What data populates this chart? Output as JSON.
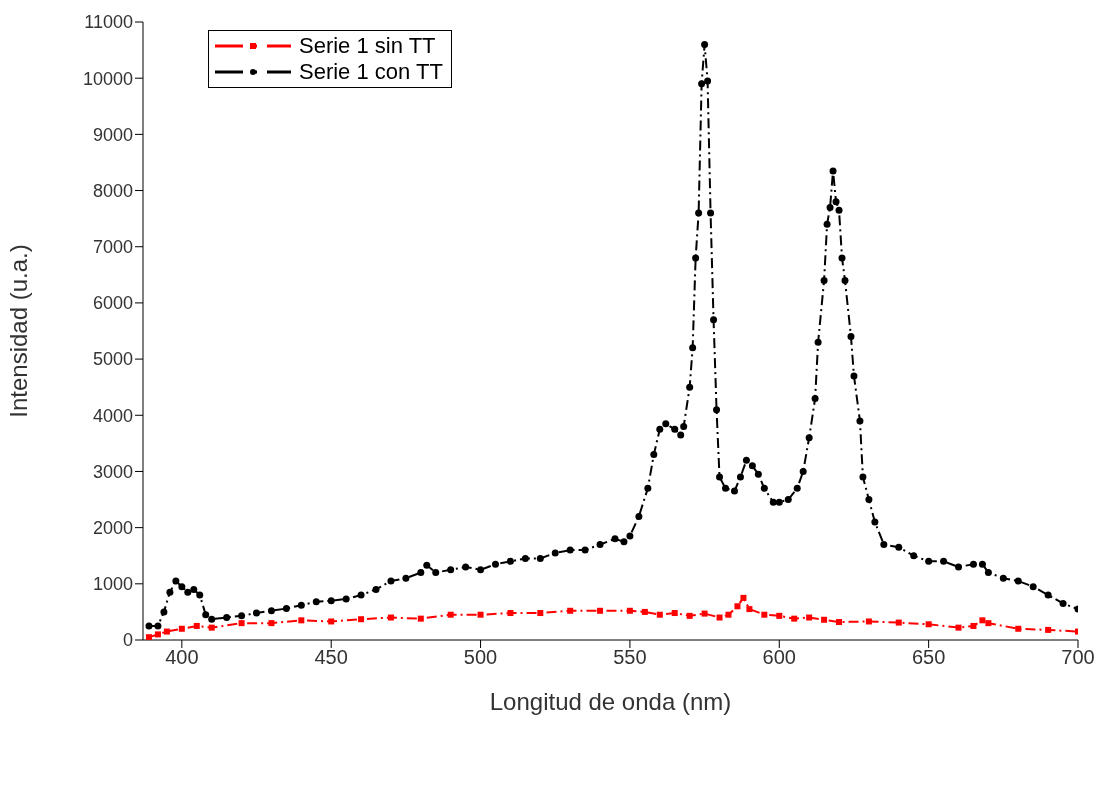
{
  "chart_data": {
    "type": "line",
    "xlabel": "Longitud de onda (nm)",
    "ylabel": "Intensidad (u.a.)",
    "xlim": [
      387,
      700
    ],
    "xticks": [
      400,
      450,
      500,
      550,
      600,
      650,
      700
    ],
    "ylim": [
      0,
      11000
    ],
    "yticks": [
      0,
      1000,
      2000,
      3000,
      4000,
      5000,
      6000,
      7000,
      8000,
      9000,
      10000,
      11000
    ],
    "grid": false,
    "legend": "top left",
    "line_style": "dashed",
    "series": [
      {
        "name": "Serie 1 sin TT",
        "color": "#ff0000",
        "marker": "square",
        "x": [
          389,
          392,
          395,
          400,
          405,
          410,
          420,
          430,
          440,
          450,
          460,
          470,
          480,
          490,
          500,
          510,
          520,
          530,
          540,
          550,
          555,
          560,
          565,
          570,
          575,
          580,
          583,
          586,
          588,
          590,
          595,
          600,
          605,
          610,
          615,
          620,
          630,
          640,
          650,
          660,
          665,
          668,
          670,
          680,
          690,
          700
        ],
        "values": [
          50,
          100,
          150,
          200,
          250,
          220,
          300,
          300,
          350,
          330,
          370,
          400,
          380,
          450,
          450,
          480,
          480,
          520,
          520,
          520,
          500,
          450,
          480,
          430,
          470,
          400,
          450,
          600,
          750,
          550,
          450,
          430,
          380,
          400,
          360,
          320,
          330,
          310,
          280,
          220,
          250,
          350,
          300,
          200,
          180,
          150
        ]
      },
      {
        "name": "Serie 1 con TT",
        "color": "#000000",
        "marker": "circle",
        "x": [
          389,
          392,
          394,
          396,
          398,
          400,
          402,
          404,
          406,
          408,
          410,
          415,
          420,
          425,
          430,
          435,
          440,
          445,
          450,
          455,
          460,
          465,
          470,
          475,
          480,
          482,
          485,
          490,
          495,
          500,
          505,
          510,
          515,
          520,
          525,
          530,
          535,
          540,
          545,
          548,
          550,
          553,
          556,
          558,
          560,
          562,
          565,
          567,
          568,
          570,
          571,
          572,
          573,
          574,
          575,
          576,
          577,
          578,
          579,
          580,
          582,
          585,
          587,
          589,
          591,
          593,
          595,
          598,
          600,
          603,
          606,
          608,
          610,
          612,
          613,
          615,
          616,
          617,
          618,
          619,
          620,
          621,
          622,
          624,
          625,
          627,
          628,
          630,
          632,
          635,
          640,
          645,
          650,
          655,
          660,
          665,
          668,
          670,
          675,
          680,
          685,
          690,
          695,
          700
        ],
        "values": [
          250,
          250,
          500,
          850,
          1050,
          950,
          850,
          900,
          800,
          450,
          370,
          400,
          430,
          480,
          520,
          560,
          620,
          680,
          700,
          730,
          800,
          900,
          1050,
          1100,
          1200,
          1330,
          1200,
          1250,
          1300,
          1250,
          1350,
          1400,
          1450,
          1450,
          1550,
          1600,
          1600,
          1700,
          1800,
          1750,
          1850,
          2200,
          2700,
          3300,
          3750,
          3850,
          3750,
          3650,
          3800,
          4500,
          5200,
          6800,
          7600,
          9900,
          10600,
          9950,
          7600,
          5700,
          4100,
          2900,
          2700,
          2650,
          2900,
          3200,
          3100,
          2950,
          2700,
          2450,
          2450,
          2500,
          2700,
          3000,
          3600,
          4300,
          5300,
          6400,
          7400,
          7700,
          8350,
          7800,
          7650,
          6800,
          6400,
          5400,
          4700,
          3900,
          2900,
          2500,
          2100,
          1700,
          1650,
          1500,
          1400,
          1400,
          1300,
          1350,
          1350,
          1200,
          1100,
          1050,
          950,
          800,
          650,
          550
        ]
      }
    ]
  }
}
